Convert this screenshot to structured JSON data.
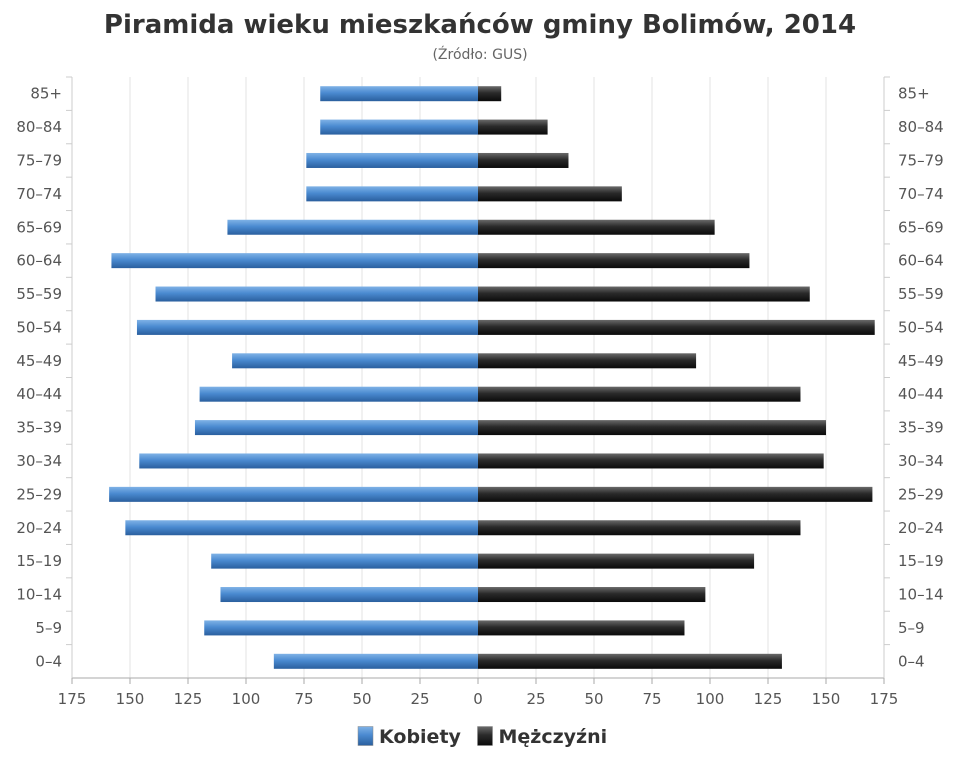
{
  "chart_data": {
    "type": "bar",
    "orientation": "horizontal",
    "layout": "population-pyramid",
    "title": "Piramida wieku mieszkańców gminy Bolimów, 2014",
    "subtitle": "(Źródło: GUS)",
    "categories": [
      "85+",
      "80–84",
      "75–79",
      "70–74",
      "65–69",
      "60–64",
      "55–59",
      "50–54",
      "45–49",
      "40–44",
      "35–39",
      "30–34",
      "25–29",
      "20–24",
      "15–19",
      "10–14",
      "5–9",
      "0–4"
    ],
    "x_ticks": [
      "175",
      "150",
      "125",
      "100",
      "75",
      "50",
      "25",
      "0",
      "25",
      "50",
      "75",
      "100",
      "125",
      "150",
      "175"
    ],
    "xlim": [
      -175,
      175
    ],
    "grid": true,
    "legend_position": "bottom-center",
    "series": [
      {
        "name": "Kobiety",
        "side": "left",
        "color": "#4a8ad0",
        "values": [
          68,
          68,
          74,
          74,
          108,
          158,
          139,
          147,
          106,
          120,
          122,
          146,
          159,
          152,
          115,
          111,
          118,
          88
        ]
      },
      {
        "name": "Mężczyźni",
        "side": "right",
        "color": "#222222",
        "values": [
          10,
          30,
          39,
          62,
          102,
          117,
          143,
          171,
          94,
          139,
          150,
          149,
          170,
          139,
          119,
          98,
          89,
          131
        ]
      }
    ]
  }
}
